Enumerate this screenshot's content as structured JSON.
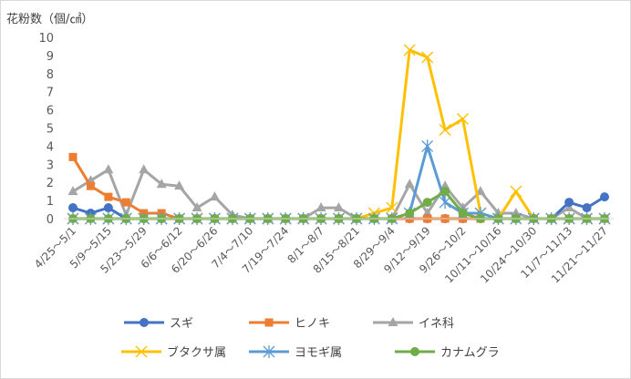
{
  "chart_data": {
    "type": "line",
    "ylabel": "花粉数（個/㎠）",
    "ylim": [
      0,
      10
    ],
    "yticks": [
      0,
      1,
      2,
      3,
      4,
      5,
      6,
      7,
      8,
      9,
      10
    ],
    "x_tick_labels": [
      "4/25～5/1",
      "5/9～5/15",
      "5/23～5/29",
      "6/6～6/12",
      "6/20～6/26",
      "7/4～7/10",
      "7/19～7/24",
      "8/1～8/7",
      "8/15～8/21",
      "8/29～9/4",
      "9/12～9/19",
      "9/26～10/2",
      "10/11～10/16",
      "10/24～10/30",
      "11/7～11/13",
      "11/21～11/27"
    ],
    "point_count": 31,
    "legend_position": "bottom",
    "series": [
      {
        "name": "スギ",
        "color": "#4472c4",
        "marker": "circle",
        "values": [
          0.6,
          0.3,
          0.6,
          0,
          0,
          0,
          0,
          0,
          0,
          0,
          0,
          0,
          0,
          0,
          0,
          0,
          0,
          0,
          0,
          0,
          0,
          0,
          0,
          0,
          0,
          0,
          0,
          0,
          0.9,
          0.6,
          1.2
        ]
      },
      {
        "name": "ヒノキ",
        "color": "#ed7d31",
        "marker": "square",
        "values": [
          3.4,
          1.8,
          1.2,
          0.9,
          0.3,
          0.3,
          0,
          0,
          0,
          0,
          0,
          0,
          0,
          0,
          0,
          0,
          0,
          0,
          0,
          0,
          0,
          0,
          0,
          0,
          0,
          0,
          0,
          0,
          0,
          0,
          0
        ]
      },
      {
        "name": "イネ科",
        "color": "#a5a5a5",
        "marker": "triangle",
        "values": [
          1.5,
          2.1,
          2.7,
          0.2,
          2.7,
          1.9,
          1.8,
          0.6,
          1.2,
          0.2,
          0,
          0,
          0,
          0,
          0.6,
          0.6,
          0,
          0,
          0,
          1.9,
          0.3,
          1.8,
          0.6,
          1.5,
          0.3,
          0.3,
          0,
          0,
          0.6,
          0,
          0
        ]
      },
      {
        "name": "ブタクサ属",
        "color": "#ffc000",
        "marker": "x",
        "values": [
          0,
          0,
          0,
          0,
          0,
          0,
          0,
          0,
          0,
          0,
          0,
          0,
          0,
          0,
          0,
          0,
          0,
          0.3,
          0.6,
          9.3,
          8.9,
          4.9,
          5.5,
          0.3,
          0,
          1.5,
          0,
          0,
          0,
          0,
          0
        ]
      },
      {
        "name": "ヨモギ属",
        "color": "#5b9bd5",
        "marker": "star",
        "values": [
          0,
          0,
          0,
          0,
          0,
          0,
          0,
          0,
          0,
          0,
          0,
          0,
          0,
          0,
          0,
          0,
          0,
          0,
          0,
          0.3,
          4.0,
          0.9,
          0.3,
          0.3,
          0,
          0,
          0,
          0,
          0,
          0,
          0
        ]
      },
      {
        "name": "カナムグラ",
        "color": "#70ad47",
        "marker": "circle",
        "values": [
          0,
          0,
          0,
          0,
          0,
          0,
          0,
          0,
          0,
          0,
          0,
          0,
          0,
          0,
          0,
          0,
          0,
          0,
          0,
          0.3,
          0.9,
          1.5,
          0.3,
          0,
          0,
          0,
          0,
          0,
          0,
          0,
          0
        ]
      }
    ]
  }
}
